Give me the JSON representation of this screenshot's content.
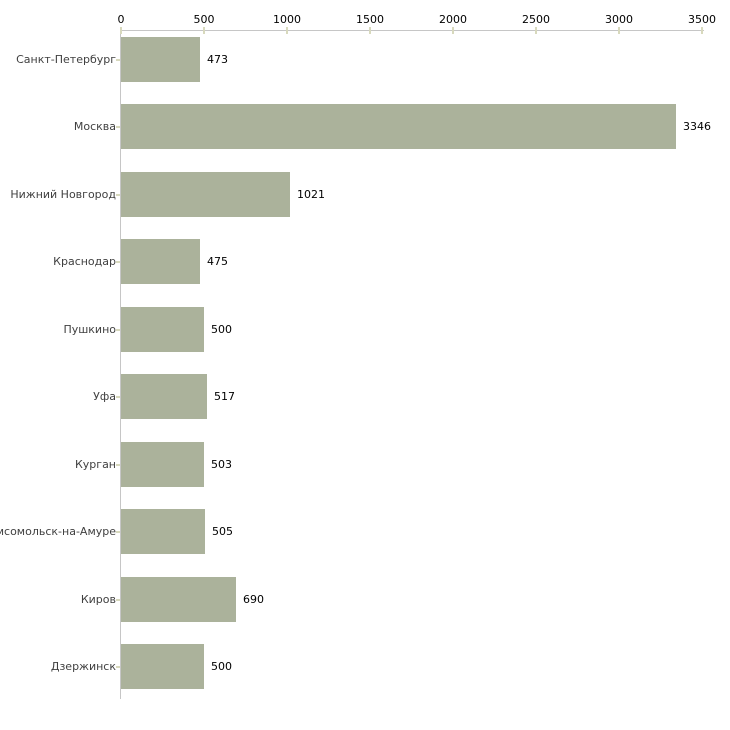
{
  "chart_data": {
    "type": "bar",
    "orientation": "horizontal",
    "title": "",
    "xlabel": "",
    "ylabel": "",
    "categories": [
      "Санкт-Петербург",
      "Москва",
      "Нижний Новгород",
      "Краснодар",
      "Пушкино",
      "Уфа",
      "Курган",
      "мсомольск-на-Амуре",
      "Киров",
      "Дзержинск"
    ],
    "values": [
      473,
      3346,
      1021,
      475,
      500,
      517,
      503,
      505,
      690,
      500
    ],
    "value_labels": [
      "473",
      "3346",
      "1021",
      "475",
      "500",
      "517",
      "503",
      "505",
      "690",
      "500"
    ],
    "xlim": [
      0,
      3500
    ],
    "x_ticks": [
      0,
      500,
      1000,
      1500,
      2000,
      2500,
      3000,
      3500
    ],
    "x_tick_labels": [
      "0",
      "500",
      "1000",
      "1500",
      "2000",
      "2500",
      "3000",
      "3500"
    ],
    "grid": false,
    "legend": "none",
    "x_axis_position": "top",
    "colors": {
      "bar": "#abb29b",
      "axis_line": "#c6c6c6",
      "tick_mark": "#d8d9bd",
      "category_label": "#404040",
      "value_label": "#000000",
      "tick_label": "#000000",
      "background": "#ffffff"
    }
  }
}
